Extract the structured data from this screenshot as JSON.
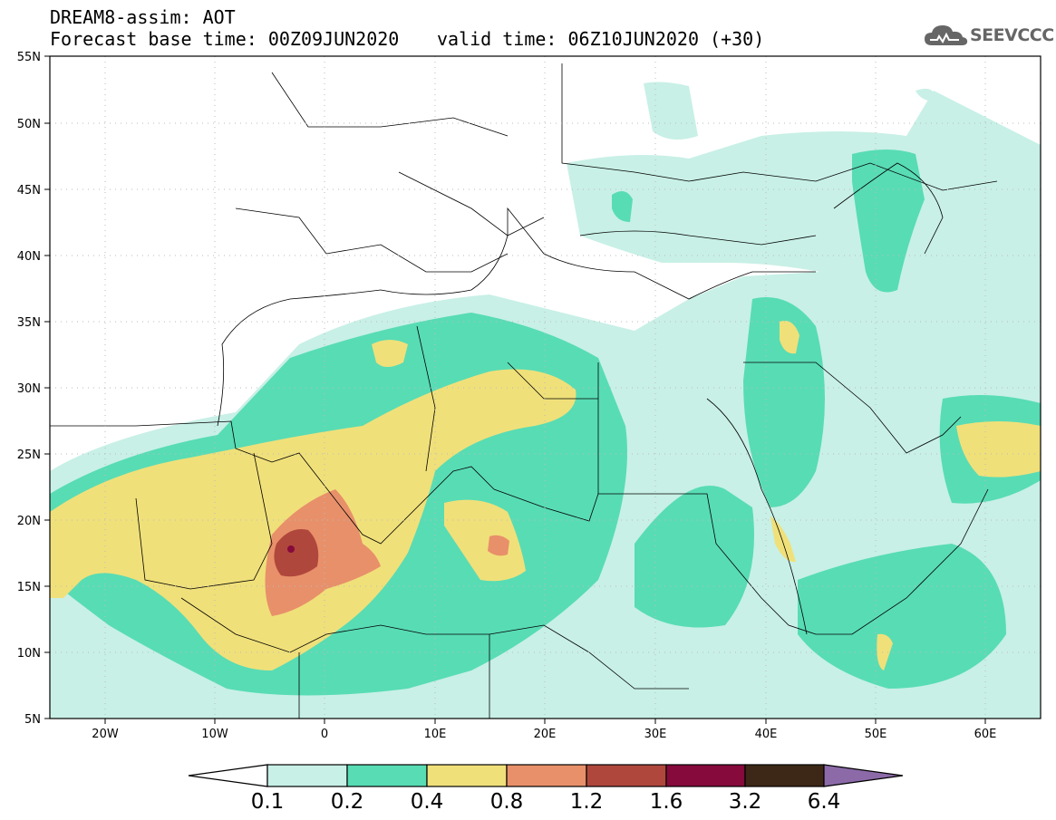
{
  "header": {
    "title": "DREAM8-assim: AOT",
    "base_time": "Forecast base time: 00Z09JUN2020",
    "valid_time": "valid time: 06Z10JUN2020 (+30)",
    "logo_text": "SEEVCCC"
  },
  "map": {
    "lon_range": [
      -25,
      65
    ],
    "lat_range": [
      5,
      55
    ],
    "lat_ticks": [
      "5N",
      "10N",
      "15N",
      "20N",
      "25N",
      "30N",
      "35N",
      "40N",
      "45N",
      "50N",
      "55N"
    ],
    "lon_ticks": [
      "20W",
      "10W",
      "0",
      "10E",
      "20E",
      "30E",
      "40E",
      "50E",
      "60E"
    ]
  },
  "colorbar": {
    "levels": [
      "0.1",
      "0.2",
      "0.4",
      "0.8",
      "1.2",
      "1.6",
      "3.2",
      "6.4"
    ],
    "colors": [
      "#ffffff",
      "#c8f0e6",
      "#58dcb4",
      "#f0e07a",
      "#e8906a",
      "#b0473c",
      "#860a3c",
      "#3d2716",
      "#8c6aa8"
    ]
  }
}
